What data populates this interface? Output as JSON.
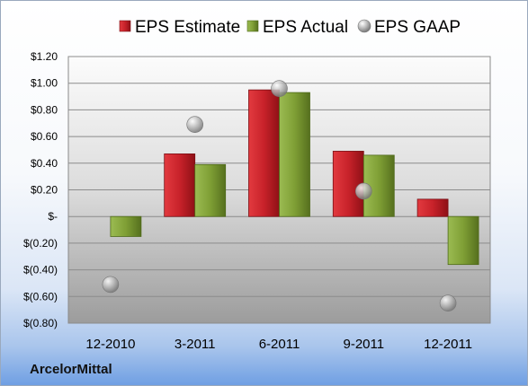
{
  "company": "ArcelorMittal",
  "chart_data": {
    "type": "bar",
    "categories": [
      "12-2010",
      "3-2011",
      "6-2011",
      "9-2011",
      "12-2011"
    ],
    "series": [
      {
        "name": "EPS Estimate",
        "kind": "bar",
        "color": "#c8222a",
        "values": [
          null,
          0.47,
          0.95,
          0.49,
          0.13
        ]
      },
      {
        "name": "EPS Actual",
        "kind": "bar",
        "color": "#7f9f35",
        "values": [
          -0.15,
          0.39,
          0.93,
          0.46,
          -0.36
        ]
      },
      {
        "name": "EPS GAAP",
        "kind": "marker",
        "color": "#a0a0a0",
        "values": [
          -0.51,
          0.69,
          0.96,
          0.19,
          -0.65
        ]
      }
    ],
    "ylim": [
      -0.8,
      1.2
    ],
    "yticks": [
      1.2,
      1.0,
      0.8,
      0.6,
      0.4,
      0.2,
      0,
      -0.2,
      -0.4,
      -0.6,
      -0.8
    ],
    "ytick_labels": [
      "$1.20",
      "$1.00",
      "$0.80",
      "$0.60",
      "$0.40",
      "$0.20",
      "$-",
      "$(0.20)",
      "$(0.40)",
      "$(0.60)",
      "$(0.80)"
    ],
    "grid": true,
    "legend": "top"
  }
}
